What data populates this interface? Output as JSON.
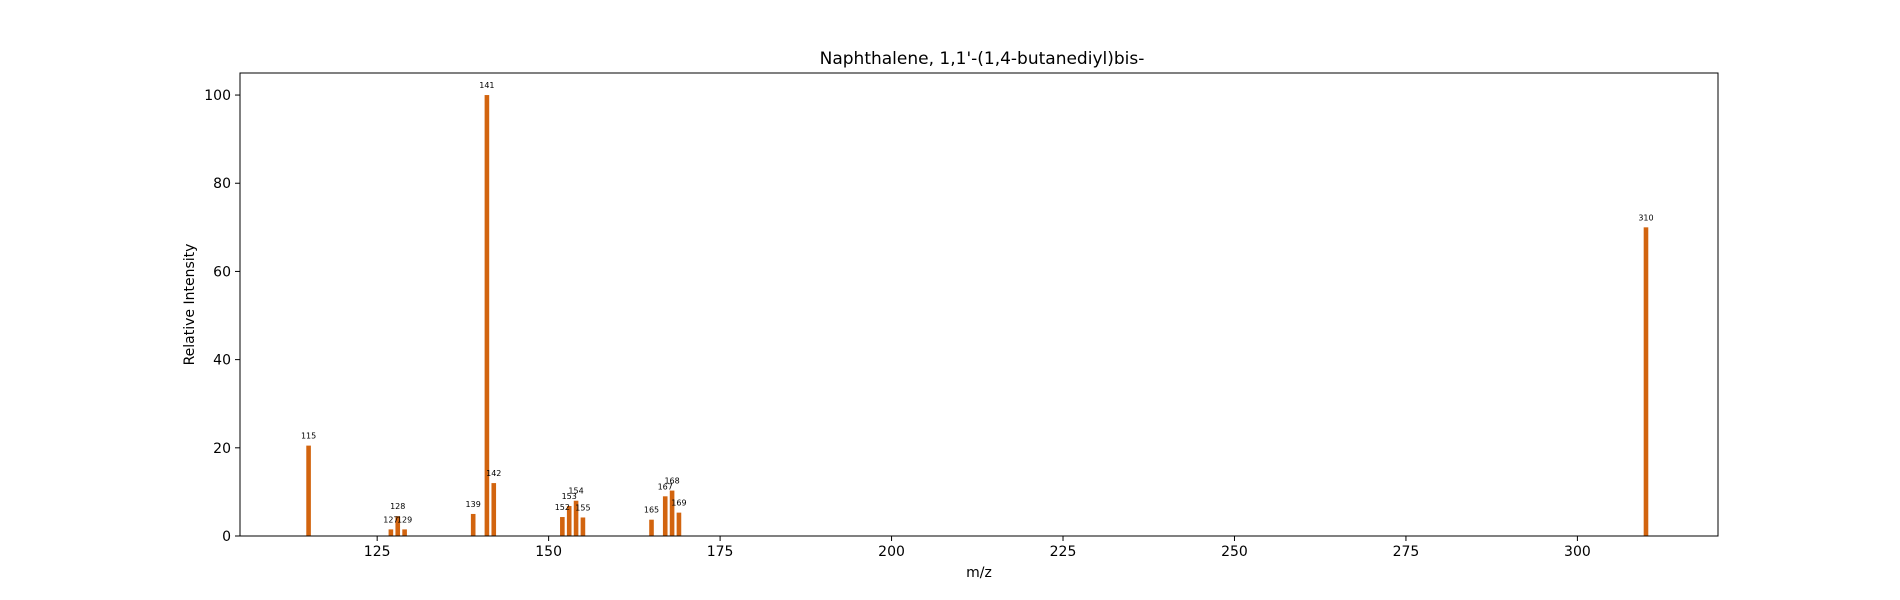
{
  "chart_data": {
    "type": "bar",
    "title": "Naphthalene, 1,1'-(1,4-butanediyl)bis-",
    "xlabel": "m/z",
    "ylabel": "Relative Intensity",
    "xlim": [
      105,
      320.5
    ],
    "ylim": [
      0,
      105
    ],
    "xticks": [
      125,
      150,
      175,
      200,
      225,
      250,
      275,
      300
    ],
    "yticks": [
      0,
      20,
      40,
      60,
      80,
      100
    ],
    "bar_color": "#d2640f",
    "grid": false,
    "legend": "none",
    "peaks": [
      {
        "mz": 115,
        "intensity": 20.5,
        "label": "115"
      },
      {
        "mz": 127,
        "intensity": 1.5,
        "label": "127"
      },
      {
        "mz": 128,
        "intensity": 4.5,
        "label": "128"
      },
      {
        "mz": 129,
        "intensity": 1.5,
        "label": "129"
      },
      {
        "mz": 139,
        "intensity": 5.0,
        "label": "139"
      },
      {
        "mz": 141,
        "intensity": 100,
        "label": "141"
      },
      {
        "mz": 142,
        "intensity": 12.0,
        "label": "142"
      },
      {
        "mz": 152,
        "intensity": 4.3,
        "label": "152"
      },
      {
        "mz": 153,
        "intensity": 6.8,
        "label": "153"
      },
      {
        "mz": 154,
        "intensity": 8.0,
        "label": "154"
      },
      {
        "mz": 155,
        "intensity": 4.2,
        "label": "155"
      },
      {
        "mz": 165,
        "intensity": 3.7,
        "label": "165"
      },
      {
        "mz": 167,
        "intensity": 9.0,
        "label": "167"
      },
      {
        "mz": 168,
        "intensity": 10.3,
        "label": "168"
      },
      {
        "mz": 169,
        "intensity": 5.3,
        "label": "169"
      },
      {
        "mz": 310,
        "intensity": 70,
        "label": "310"
      }
    ]
  }
}
